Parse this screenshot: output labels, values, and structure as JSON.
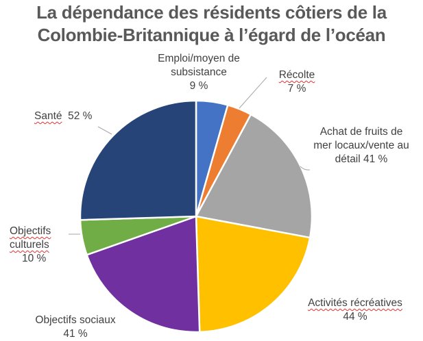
{
  "chart_data": {
    "type": "pie",
    "title_lines": [
      "La dépendance des résidents côtiers de la",
      "Colombie-Britannique à l’égard de l’océan"
    ],
    "start": "top, clockwise",
    "slices": [
      {
        "name": "Emploi/moyen de subsistance",
        "label_lines": [
          "Emploi/moyen de",
          "subsistance",
          "9 %"
        ],
        "value": 9,
        "color": "#4472C4"
      },
      {
        "name": "Récolte",
        "label_lines": [
          "Récolte",
          "7 %"
        ],
        "value": 7,
        "color": "#ED7D31"
      },
      {
        "name": "Achat de fruits de mer locaux/vente au détail",
        "label_lines": [
          "Achat de fruits de",
          "mer locaux/vente au",
          "détail 41 %"
        ],
        "value": 41,
        "color": "#A5A5A5"
      },
      {
        "name": "Activités récréatives",
        "label_lines": [
          "Activités récréatives",
          "44 %"
        ],
        "value": 44,
        "color": "#FFC000"
      },
      {
        "name": "Objectifs sociaux",
        "label_lines": [
          "Objectifs sociaux",
          "41 %"
        ],
        "value": 41,
        "color": "#7030A0"
      },
      {
        "name": "Objectifs culturels",
        "label_lines": [
          "Objectifs",
          "culturels",
          "10 %"
        ],
        "value": 10,
        "color": "#70AD47"
      },
      {
        "name": "Santé",
        "label_lines": [
          "Santé  52 %"
        ],
        "value": 52,
        "color": "#264478"
      }
    ],
    "legend": "none"
  }
}
